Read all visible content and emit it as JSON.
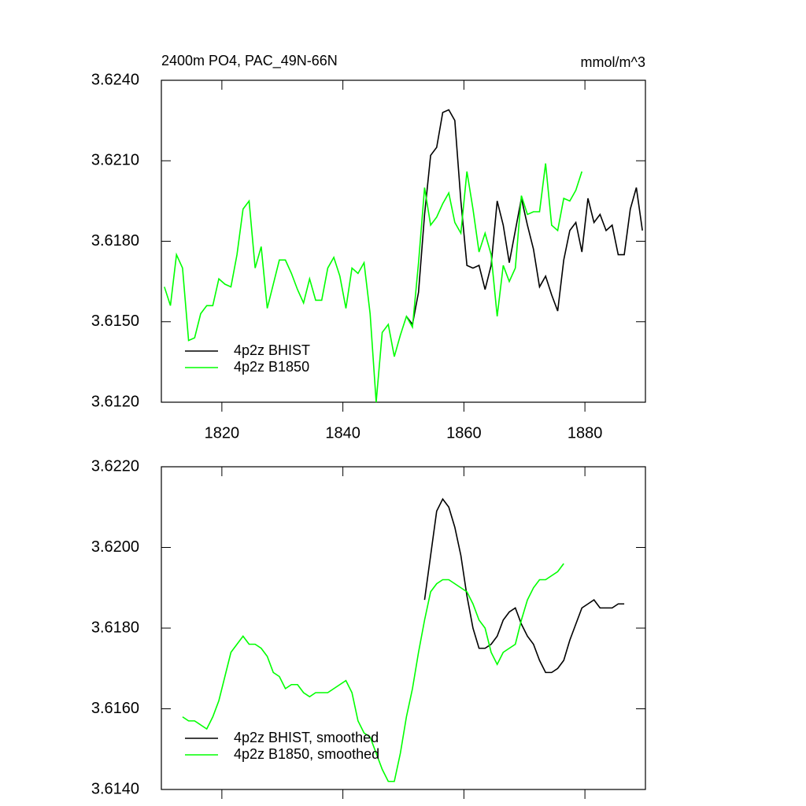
{
  "chart_data": [
    {
      "type": "line",
      "title": "2400m PO4, PAC_49N-66N",
      "units": "mmol/m^3",
      "xlim": [
        1810,
        1890
      ],
      "xticks": [
        1820,
        1840,
        1860,
        1880
      ],
      "show_xtick_labels": true,
      "ylim": [
        3.612,
        3.624
      ],
      "yticks": [
        {
          "value": 3.612,
          "label": "3.6120"
        },
        {
          "value": 3.615,
          "label": "3.6150"
        },
        {
          "value": 3.618,
          "label": "3.6180"
        },
        {
          "value": 3.621,
          "label": "3.6210"
        },
        {
          "value": 3.624,
          "label": "3.6240"
        }
      ],
      "legend": "lower left",
      "series": [
        {
          "name": "4p2z BHIST",
          "color": "#000000",
          "x": [
            1850.5,
            1851.5,
            1852.5,
            1853.5,
            1854.5,
            1855.5,
            1856.5,
            1857.5,
            1858.5,
            1859.5,
            1860.5,
            1861.5,
            1862.5,
            1863.5,
            1864.5,
            1865.5,
            1866.5,
            1867.5,
            1868.5,
            1869.5,
            1870.5,
            1871.5,
            1872.5,
            1873.5,
            1874.5,
            1875.5,
            1876.5,
            1877.5,
            1878.5,
            1879.5,
            1880.5,
            1881.5,
            1882.5,
            1883.5,
            1884.5,
            1885.5,
            1886.5,
            1887.5,
            1888.5,
            1889.5
          ],
          "values": [
            3.6152,
            3.6149,
            3.6161,
            3.619,
            3.6212,
            3.6215,
            3.6228,
            3.6229,
            3.6225,
            3.6195,
            3.6171,
            3.617,
            3.6171,
            3.6162,
            3.6171,
            3.6195,
            3.6186,
            3.6172,
            3.6184,
            3.6196,
            3.6186,
            3.6177,
            3.6163,
            3.6167,
            3.616,
            3.6154,
            3.6173,
            3.6184,
            3.6187,
            3.6176,
            3.6196,
            3.6187,
            3.619,
            3.6184,
            3.6186,
            3.6175,
            3.6175,
            3.6192,
            3.62,
            3.6184
          ]
        },
        {
          "name": "4p2z B1850",
          "color": "#00ff00",
          "x": [
            1810.5,
            1811.5,
            1812.5,
            1813.5,
            1814.5,
            1815.5,
            1816.5,
            1817.5,
            1818.5,
            1819.5,
            1820.5,
            1821.5,
            1822.5,
            1823.5,
            1824.5,
            1825.5,
            1826.5,
            1827.5,
            1828.5,
            1829.5,
            1830.5,
            1831.5,
            1832.5,
            1833.5,
            1834.5,
            1835.5,
            1836.5,
            1837.5,
            1838.5,
            1839.5,
            1840.5,
            1841.5,
            1842.5,
            1843.5,
            1844.5,
            1845.5,
            1846.5,
            1847.5,
            1848.5,
            1849.5,
            1850.5,
            1851.5,
            1852.5,
            1853.5,
            1854.5,
            1855.5,
            1856.5,
            1857.5,
            1858.5,
            1859.5,
            1860.5,
            1861.5,
            1862.5,
            1863.5,
            1864.5,
            1865.5,
            1866.5,
            1867.5,
            1868.5,
            1869.5,
            1870.5,
            1871.5,
            1872.5,
            1873.5,
            1874.5,
            1875.5,
            1876.5,
            1877.5,
            1878.5,
            1879.5
          ],
          "values": [
            3.6163,
            3.6156,
            3.6175,
            3.617,
            3.6143,
            3.6144,
            3.6153,
            3.6156,
            3.6156,
            3.6166,
            3.6164,
            3.6163,
            3.6175,
            3.6192,
            3.6195,
            3.617,
            3.6178,
            3.6155,
            3.6164,
            3.6173,
            3.6173,
            3.6168,
            3.6162,
            3.6157,
            3.6166,
            3.6158,
            3.6158,
            3.617,
            3.6174,
            3.6167,
            3.6155,
            3.617,
            3.6168,
            3.6172,
            3.6153,
            3.612,
            3.6146,
            3.6149,
            3.6137,
            3.6145,
            3.6152,
            3.6148,
            3.6172,
            3.62,
            3.6186,
            3.6189,
            3.6194,
            3.6198,
            3.6187,
            3.6183,
            3.6206,
            3.6192,
            3.6176,
            3.6183,
            3.6175,
            3.6152,
            3.6171,
            3.6165,
            3.617,
            3.6197,
            3.619,
            3.6191,
            3.6191,
            3.6209,
            3.6186,
            3.6184,
            3.6196,
            3.6195,
            3.6199,
            3.6206
          ]
        }
      ]
    },
    {
      "type": "line",
      "xlim": [
        1810,
        1890
      ],
      "xticks": [
        1820,
        1840,
        1860,
        1880
      ],
      "show_xtick_labels": false,
      "ylim": [
        3.614,
        3.622
      ],
      "yticks": [
        {
          "value": 3.614,
          "label": "3.6140"
        },
        {
          "value": 3.616,
          "label": "3.6160"
        },
        {
          "value": 3.618,
          "label": "3.6180"
        },
        {
          "value": 3.62,
          "label": "3.6200"
        },
        {
          "value": 3.622,
          "label": "3.6220"
        }
      ],
      "legend": "lower left",
      "series": [
        {
          "name": "4p2z BHIST, smoothed",
          "color": "#000000",
          "x": [
            1853.5,
            1854.5,
            1855.5,
            1856.5,
            1857.5,
            1858.5,
            1859.5,
            1860.5,
            1861.5,
            1862.5,
            1863.5,
            1864.5,
            1865.5,
            1866.5,
            1867.5,
            1868.5,
            1869.5,
            1870.5,
            1871.5,
            1872.5,
            1873.5,
            1874.5,
            1875.5,
            1876.5,
            1877.5,
            1878.5,
            1879.5,
            1880.5,
            1881.5,
            1882.5,
            1883.5,
            1884.5,
            1885.5,
            1886.5
          ],
          "values": [
            3.6187,
            3.6198,
            3.6209,
            3.6212,
            3.621,
            3.6205,
            3.6198,
            3.6188,
            3.618,
            3.6175,
            3.6175,
            3.6176,
            3.6178,
            3.6182,
            3.6184,
            3.6185,
            3.6181,
            3.6178,
            3.6176,
            3.6172,
            3.6169,
            3.6169,
            3.617,
            3.6172,
            3.6177,
            3.6181,
            3.6185,
            3.6186,
            3.6187,
            3.6185,
            3.6185,
            3.6185,
            3.6186,
            3.6186
          ]
        },
        {
          "name": "4p2z B1850, smoothed",
          "color": "#00ff00",
          "x": [
            1813.5,
            1814.5,
            1815.5,
            1816.5,
            1817.5,
            1818.5,
            1819.5,
            1820.5,
            1821.5,
            1822.5,
            1823.5,
            1824.5,
            1825.5,
            1826.5,
            1827.5,
            1828.5,
            1829.5,
            1830.5,
            1831.5,
            1832.5,
            1833.5,
            1834.5,
            1835.5,
            1836.5,
            1837.5,
            1838.5,
            1839.5,
            1840.5,
            1841.5,
            1842.5,
            1843.5,
            1844.5,
            1845.5,
            1846.5,
            1847.5,
            1848.5,
            1849.5,
            1850.5,
            1851.5,
            1852.5,
            1853.5,
            1854.5,
            1855.5,
            1856.5,
            1857.5,
            1858.5,
            1859.5,
            1860.5,
            1861.5,
            1862.5,
            1863.5,
            1864.5,
            1865.5,
            1866.5,
            1867.5,
            1868.5,
            1869.5,
            1870.5,
            1871.5,
            1872.5,
            1873.5,
            1874.5,
            1875.5,
            1876.5
          ],
          "values": [
            3.6158,
            3.6157,
            3.6157,
            3.6156,
            3.6155,
            3.6158,
            3.6162,
            3.6168,
            3.6174,
            3.6176,
            3.6178,
            3.6176,
            3.6176,
            3.6175,
            3.6173,
            3.6169,
            3.6168,
            3.6165,
            3.6166,
            3.6166,
            3.6164,
            3.6163,
            3.6164,
            3.6164,
            3.6164,
            3.6165,
            3.6166,
            3.6167,
            3.6164,
            3.6157,
            3.6154,
            3.6153,
            3.6149,
            3.6145,
            3.6142,
            3.6142,
            3.6149,
            3.6158,
            3.6165,
            3.6174,
            3.6182,
            3.6189,
            3.6191,
            3.6192,
            3.6192,
            3.6191,
            3.619,
            3.6189,
            3.6186,
            3.6182,
            3.618,
            3.6174,
            3.6171,
            3.6174,
            3.6175,
            3.6176,
            3.6182,
            3.6187,
            3.619,
            3.6192,
            3.6192,
            3.6193,
            3.6194,
            3.6196
          ]
        }
      ]
    }
  ]
}
